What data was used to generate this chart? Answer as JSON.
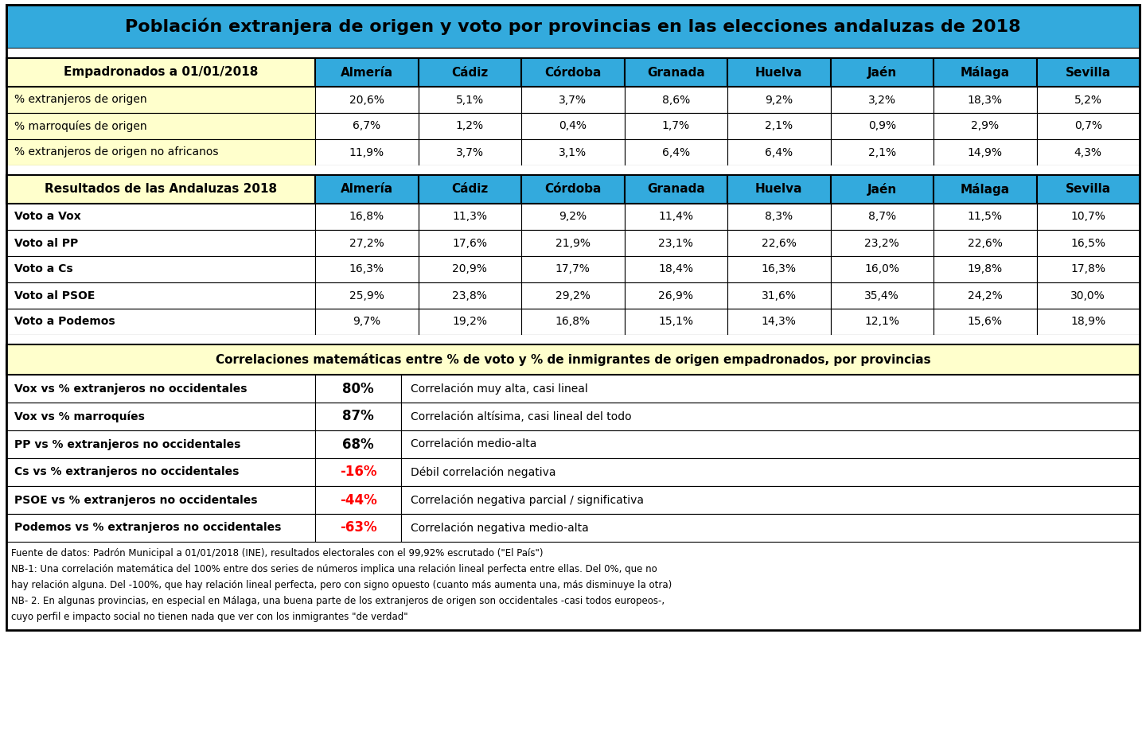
{
  "title": "Población extranjera de origen y voto por provincias en las elecciones andaluzas de 2018",
  "title_bg": "#33AADD",
  "provinces": [
    "Almería",
    "Cádiz",
    "Córdoba",
    "Granada",
    "Huelva",
    "Jaén",
    "Málaga",
    "Sevilla"
  ],
  "section1_header": "Empadronados a 01/01/2018",
  "section1_rows": [
    {
      "label": "% extranjeros de origen",
      "values": [
        "20,6%",
        "5,1%",
        "3,7%",
        "8,6%",
        "9,2%",
        "3,2%",
        "18,3%",
        "5,2%"
      ]
    },
    {
      "label": "% marroquíes de origen",
      "values": [
        "6,7%",
        "1,2%",
        "0,4%",
        "1,7%",
        "2,1%",
        "0,9%",
        "2,9%",
        "0,7%"
      ]
    },
    {
      "label": "% extranjeros de origen no africanos",
      "values": [
        "11,9%",
        "3,7%",
        "3,1%",
        "6,4%",
        "6,4%",
        "2,1%",
        "14,9%",
        "4,3%"
      ]
    }
  ],
  "section2_header": "Resultados de las Andaluzas 2018",
  "section2_rows": [
    {
      "label": "Voto a Vox",
      "values": [
        "16,8%",
        "11,3%",
        "9,2%",
        "11,4%",
        "8,3%",
        "8,7%",
        "11,5%",
        "10,7%"
      ]
    },
    {
      "label": "Voto al PP",
      "values": [
        "27,2%",
        "17,6%",
        "21,9%",
        "23,1%",
        "22,6%",
        "23,2%",
        "22,6%",
        "16,5%"
      ]
    },
    {
      "label": "Voto a Cs",
      "values": [
        "16,3%",
        "20,9%",
        "17,7%",
        "18,4%",
        "16,3%",
        "16,0%",
        "19,8%",
        "17,8%"
      ]
    },
    {
      "label": "Voto al PSOE",
      "values": [
        "25,9%",
        "23,8%",
        "29,2%",
        "26,9%",
        "31,6%",
        "35,4%",
        "24,2%",
        "30,0%"
      ]
    },
    {
      "label": "Voto a Podemos",
      "values": [
        "9,7%",
        "19,2%",
        "16,8%",
        "15,1%",
        "14,3%",
        "12,1%",
        "15,6%",
        "18,9%"
      ]
    }
  ],
  "section3_header": "Correlaciones matemáticas entre % de voto y % de inmigrantes de origen empadronados, por provincias",
  "section3_rows": [
    {
      "label": "Vox vs % extranjeros no occidentales",
      "value": "80%",
      "value_color": "#000000",
      "desc": "Correlación muy alta, casi lineal"
    },
    {
      "label": "Vox vs % marroquíes",
      "value": "87%",
      "value_color": "#000000",
      "desc": "Correlación altísima, casi lineal del todo"
    },
    {
      "label": "PP vs % extranjeros no occidentales",
      "value": "68%",
      "value_color": "#000000",
      "desc": "Correlación medio-alta"
    },
    {
      "label": "Cs vs % extranjeros no occidentales",
      "value": "-16%",
      "value_color": "#FF0000",
      "desc": "Débil correlación negativa"
    },
    {
      "label": "PSOE vs % extranjeros no occidentales",
      "value": "-44%",
      "value_color": "#FF0000",
      "desc": "Correlación negativa parcial / significativa"
    },
    {
      "label": "Podemos vs % extranjeros no occidentales",
      "value": "-63%",
      "value_color": "#FF0000",
      "desc": "Correlación negativa medio-alta"
    }
  ],
  "footnotes": [
    "Fuente de datos: Padrón Municipal a 01/01/2018 (INE), resultados electorales con el 99,92% escrutado (\"El País\")",
    "NB-1: Una correlación matemática del 100% entre dos series de números implica una relación lineal perfecta entre ellas. Del 0%, que no",
    "hay relación alguna. Del -100%, que hay relación lineal perfecta, pero con signo opuesto (cuanto más aumenta una, más disminuye la otra)",
    "NB- 2. En algunas provincias, en especial en Málaga, una buena parte de los extranjeros de origen son occidentales -casi todos europeos-,",
    "cuyo perfil e impacto social no tienen nada que ver con los inmigrantes \"de verdad\""
  ],
  "header_bg": "#33AADD",
  "section_label_bg": "#FFFFCC",
  "data_bg": "#FFFFFF",
  "lw_thick": 1.5,
  "lw_thin": 0.8,
  "title_fontsize": 16,
  "header_fontsize": 11,
  "data_fontsize": 10,
  "footnote_fontsize": 8.5,
  "corr_val_fontsize": 12
}
